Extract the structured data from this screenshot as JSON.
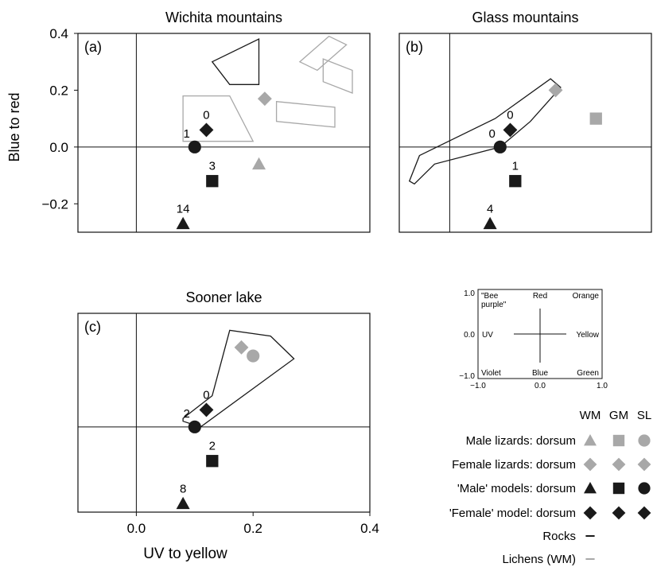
{
  "figure": {
    "ylabel": "Blue to red",
    "xlabel": "UV to yellow",
    "panel_y_ticks": [
      "0.4",
      "0.2",
      "0.0",
      "−0.2"
    ],
    "panel_x_ticks": [
      "0.0",
      "0.2",
      "0.4"
    ]
  },
  "colors": {
    "dark": "#1a1a1a",
    "grey": "#a8a8a8",
    "frame": "#111111"
  },
  "chart_data": [
    {
      "type": "scatter",
      "title": "Wichita mountains",
      "panel_label": "(a)",
      "xlim": [
        -0.1,
        0.4
      ],
      "ylim": [
        -0.3,
        0.4
      ],
      "points": [
        {
          "series": "Male lizards",
          "shape": "triangle",
          "color": "grey",
          "x": 0.21,
          "y": -0.06
        },
        {
          "series": "Female lizards",
          "shape": "diamond",
          "color": "grey",
          "x": 0.22,
          "y": 0.17
        },
        {
          "series": "'Female' model",
          "shape": "diamond",
          "color": "dark",
          "x": 0.12,
          "y": 0.06,
          "label": "0",
          "label_pos": "above"
        },
        {
          "series": "'Male' models",
          "shape": "triangle",
          "color": "dark",
          "x": 0.08,
          "y": -0.27,
          "label": "14",
          "label_pos": "above"
        },
        {
          "series": "'Male' models",
          "shape": "circle",
          "color": "dark",
          "x": 0.1,
          "y": 0.0,
          "label": "1",
          "label_pos": "above-left"
        },
        {
          "series": "'Male' models",
          "shape": "square",
          "color": "dark",
          "x": 0.13,
          "y": -0.12,
          "label": "3",
          "label_pos": "above"
        }
      ],
      "polygons": [
        {
          "series": "Rocks",
          "color": "dark",
          "points": [
            [
              0.13,
              0.3
            ],
            [
              0.21,
              0.38
            ],
            [
              0.21,
              0.22
            ],
            [
              0.16,
              0.22
            ]
          ]
        },
        {
          "series": "Lichens (WM)",
          "color": "grey",
          "points": [
            [
              0.08,
              0.18
            ],
            [
              0.16,
              0.18
            ],
            [
              0.2,
              0.02
            ],
            [
              0.08,
              0.02
            ]
          ]
        },
        {
          "series": "Lichens (WM)",
          "color": "grey",
          "points": [
            [
              0.24,
              0.16
            ],
            [
              0.34,
              0.14
            ],
            [
              0.34,
              0.07
            ],
            [
              0.24,
              0.09
            ]
          ]
        },
        {
          "series": "Lichens (WM)",
          "color": "grey",
          "points": [
            [
              0.28,
              0.3
            ],
            [
              0.33,
              0.39
            ],
            [
              0.36,
              0.36
            ],
            [
              0.31,
              0.27
            ]
          ]
        },
        {
          "series": "Lichens (WM)",
          "color": "grey",
          "points": [
            [
              0.32,
              0.31
            ],
            [
              0.37,
              0.27
            ],
            [
              0.37,
              0.19
            ],
            [
              0.32,
              0.23
            ]
          ]
        }
      ]
    },
    {
      "type": "scatter",
      "title": "Glass mountains",
      "panel_label": "(b)",
      "xlim": [
        -0.1,
        0.4
      ],
      "ylim": [
        -0.3,
        0.4
      ],
      "points": [
        {
          "series": "Male lizards",
          "shape": "square",
          "color": "grey",
          "x": 0.29,
          "y": 0.1
        },
        {
          "series": "Female lizards",
          "shape": "diamond",
          "color": "grey",
          "x": 0.21,
          "y": 0.2
        },
        {
          "series": "'Female' model",
          "shape": "diamond",
          "color": "dark",
          "x": 0.12,
          "y": 0.06,
          "label": "0",
          "label_pos": "above"
        },
        {
          "series": "'Male' models",
          "shape": "triangle",
          "color": "dark",
          "x": 0.08,
          "y": -0.27,
          "label": "4",
          "label_pos": "above"
        },
        {
          "series": "'Male' models",
          "shape": "circle",
          "color": "dark",
          "x": 0.1,
          "y": 0.0,
          "label": "0",
          "label_pos": "above-left"
        },
        {
          "series": "'Male' models",
          "shape": "square",
          "color": "dark",
          "x": 0.13,
          "y": -0.12,
          "label": "1",
          "label_pos": "above"
        }
      ],
      "polygons": [
        {
          "series": "Rocks",
          "color": "dark",
          "points": [
            [
              -0.08,
              -0.12
            ],
            [
              -0.06,
              -0.03
            ],
            [
              0.09,
              0.1
            ],
            [
              0.2,
              0.24
            ],
            [
              0.22,
              0.21
            ],
            [
              0.16,
              0.09
            ],
            [
              0.1,
              0.0
            ],
            [
              -0.03,
              -0.06
            ],
            [
              -0.07,
              -0.13
            ]
          ]
        }
      ]
    },
    {
      "type": "scatter",
      "title": "Sooner lake",
      "panel_label": "(c)",
      "xlim": [
        -0.1,
        0.4
      ],
      "ylim": [
        -0.3,
        0.4
      ],
      "points": [
        {
          "series": "Male lizards",
          "shape": "circle",
          "color": "grey",
          "x": 0.2,
          "y": 0.25
        },
        {
          "series": "Female lizards",
          "shape": "diamond",
          "color": "grey",
          "x": 0.18,
          "y": 0.28
        },
        {
          "series": "'Female' model",
          "shape": "diamond",
          "color": "dark",
          "x": 0.12,
          "y": 0.06,
          "label": "0",
          "label_pos": "above"
        },
        {
          "series": "'Male' models",
          "shape": "triangle",
          "color": "dark",
          "x": 0.08,
          "y": -0.27,
          "label": "8",
          "label_pos": "above"
        },
        {
          "series": "'Male' models",
          "shape": "circle",
          "color": "dark",
          "x": 0.1,
          "y": 0.0,
          "label": "2",
          "label_pos": "above-left"
        },
        {
          "series": "'Male' models",
          "shape": "square",
          "color": "dark",
          "x": 0.13,
          "y": -0.12,
          "label": "2",
          "label_pos": "above"
        }
      ],
      "polygons": [
        {
          "series": "Rocks",
          "color": "dark",
          "points": [
            [
              0.08,
              0.03
            ],
            [
              0.13,
              0.11
            ],
            [
              0.16,
              0.34
            ],
            [
              0.23,
              0.32
            ],
            [
              0.27,
              0.24
            ],
            [
              0.11,
              0.0
            ],
            [
              0.08,
              0.02
            ]
          ]
        }
      ]
    }
  ],
  "color_space_key": {
    "xlim": [
      -1.0,
      1.0
    ],
    "ylim": [
      -1.0,
      1.0
    ],
    "y_ticks": [
      "1.0",
      "0.0",
      "−1.0"
    ],
    "x_ticks": [
      "−1.0",
      "0.0",
      "1.0"
    ],
    "labels": {
      "top_left_1": "\"Bee",
      "top_left_2": "purple\"",
      "top_center": "Red",
      "top_right": "Orange",
      "mid_left": "UV",
      "mid_right": "Yellow",
      "bottom_left": "Violet",
      "bottom_center": "Blue",
      "bottom_right": "Green"
    }
  },
  "legend": {
    "columns": [
      "WM",
      "GM",
      "SL"
    ],
    "rows": [
      {
        "label": "Male lizards: dorsum",
        "symbols": [
          {
            "shape": "triangle",
            "color": "grey"
          },
          {
            "shape": "square",
            "color": "grey"
          },
          {
            "shape": "circle",
            "color": "grey"
          }
        ]
      },
      {
        "label": "Female lizards: dorsum",
        "symbols": [
          {
            "shape": "diamond",
            "color": "grey"
          },
          {
            "shape": "diamond",
            "color": "grey"
          },
          {
            "shape": "diamond",
            "color": "grey"
          }
        ]
      },
      {
        "label": "'Male' models: dorsum",
        "symbols": [
          {
            "shape": "triangle",
            "color": "dark"
          },
          {
            "shape": "square",
            "color": "dark"
          },
          {
            "shape": "circle",
            "color": "dark"
          }
        ]
      },
      {
        "label": "'Female' model: dorsum",
        "symbols": [
          {
            "shape": "diamond",
            "color": "dark"
          },
          {
            "shape": "diamond",
            "color": "dark"
          },
          {
            "shape": "diamond",
            "color": "dark"
          }
        ]
      },
      {
        "label": "Rocks",
        "symbols": [
          {
            "shape": "line",
            "color": "dark"
          }
        ]
      },
      {
        "label": "Lichens (WM)",
        "symbols": [
          {
            "shape": "line",
            "color": "grey"
          }
        ]
      }
    ]
  }
}
